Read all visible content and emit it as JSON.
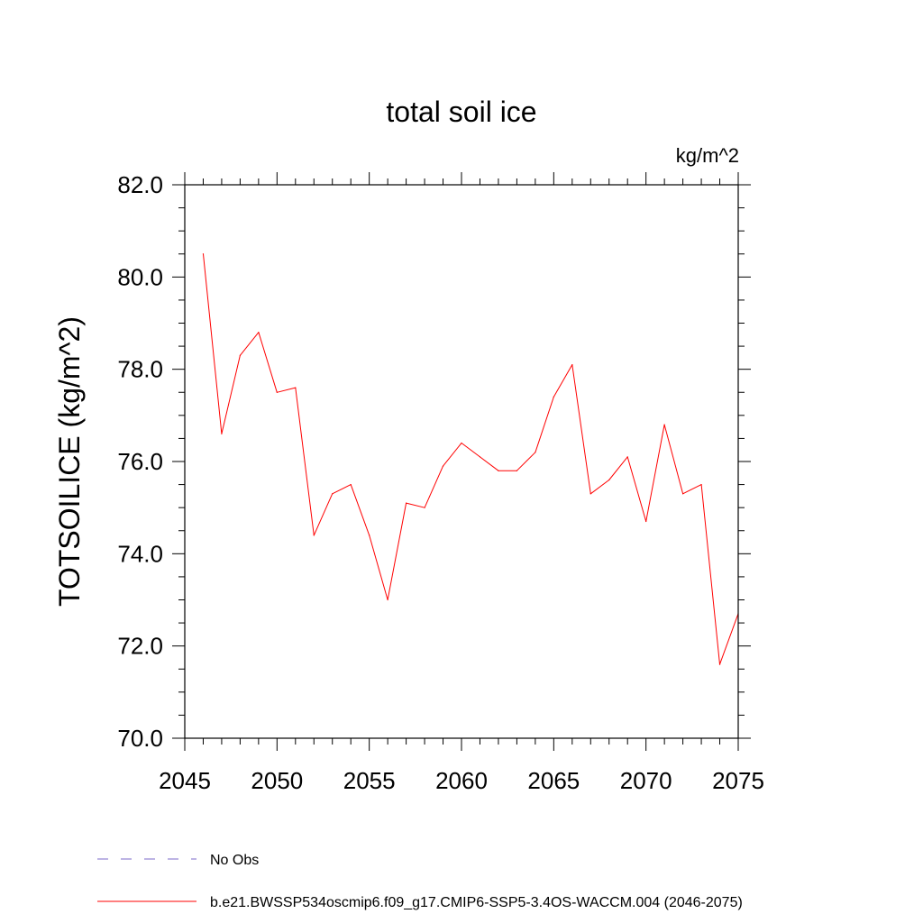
{
  "chart_data": {
    "type": "line",
    "title": "total soil ice",
    "units": "kg/m^2",
    "ylabel": "TOTSOILICE  (kg/m^2)",
    "xlabel": "",
    "xlim": [
      2045,
      2075
    ],
    "ylim": [
      70.0,
      82.0
    ],
    "x_ticks": [
      2045,
      2050,
      2055,
      2060,
      2065,
      2070,
      2075
    ],
    "x_tick_labels": [
      "2045",
      "2050",
      "2055",
      "2060",
      "2065",
      "2070",
      "2075"
    ],
    "y_ticks": [
      70.0,
      72.0,
      74.0,
      76.0,
      78.0,
      80.0,
      82.0
    ],
    "y_tick_labels": [
      "70.0",
      "72.0",
      "74.0",
      "76.0",
      "78.0",
      "80.0",
      "82.0"
    ],
    "grid": false,
    "legend_position": "bottom",
    "series": [
      {
        "name": "b.e21.BWSSP534oscmip6.f09_g17.CMIP6-SSP5-3.4OS-WACCM.004 (2046-2075)",
        "color": "#ff0000",
        "style": "solid",
        "x": [
          2046,
          2047,
          2048,
          2049,
          2050,
          2051,
          2052,
          2053,
          2054,
          2055,
          2056,
          2057,
          2058,
          2059,
          2060,
          2061,
          2062,
          2063,
          2064,
          2065,
          2066,
          2067,
          2068,
          2069,
          2070,
          2071,
          2072,
          2073,
          2074,
          2075
        ],
        "values": [
          80.5,
          76.6,
          78.3,
          78.8,
          77.5,
          77.6,
          74.4,
          75.3,
          75.5,
          74.4,
          73.0,
          75.1,
          75.0,
          75.9,
          76.4,
          76.1,
          75.8,
          75.8,
          76.2,
          77.4,
          78.1,
          75.3,
          75.6,
          76.1,
          74.7,
          76.8,
          75.3,
          75.5,
          71.6,
          72.7
        ]
      }
    ],
    "legend": [
      {
        "label": "No Obs",
        "color": "#7b68c8",
        "style": "dashed"
      },
      {
        "label": "b.e21.BWSSP534oscmip6.f09_g17.CMIP6-SSP5-3.4OS-WACCM.004 (2046-2075)",
        "color": "#ff0000",
        "style": "solid"
      }
    ]
  }
}
